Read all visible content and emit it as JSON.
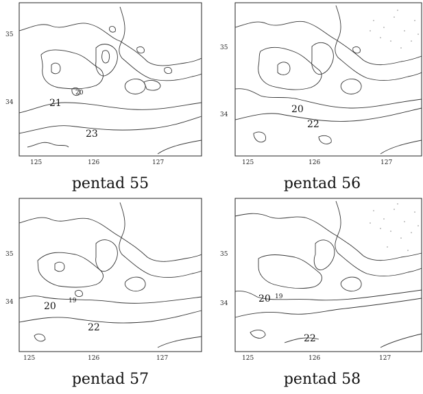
{
  "panels": [
    {
      "caption": "pentad 55",
      "y_ticks": [
        "35",
        "34"
      ],
      "x_ticks": [
        "125",
        "126",
        "127"
      ],
      "contour_labels": [
        "21",
        "23",
        "20"
      ]
    },
    {
      "caption": "pentad 56",
      "y_ticks": [
        "35",
        "34"
      ],
      "x_ticks": [
        "125",
        "126",
        "127"
      ],
      "contour_labels": [
        "20",
        "22"
      ]
    },
    {
      "caption": "pentad 57",
      "y_ticks": [
        "35",
        "34"
      ],
      "x_ticks": [
        "125",
        "126",
        "127"
      ],
      "contour_labels": [
        "20",
        "22",
        "19"
      ]
    },
    {
      "caption": "pentad 58",
      "y_ticks": [
        "35",
        "34"
      ],
      "x_ticks": [
        "125",
        "126",
        "127"
      ],
      "contour_labels": [
        "20",
        "22",
        "19"
      ]
    }
  ]
}
